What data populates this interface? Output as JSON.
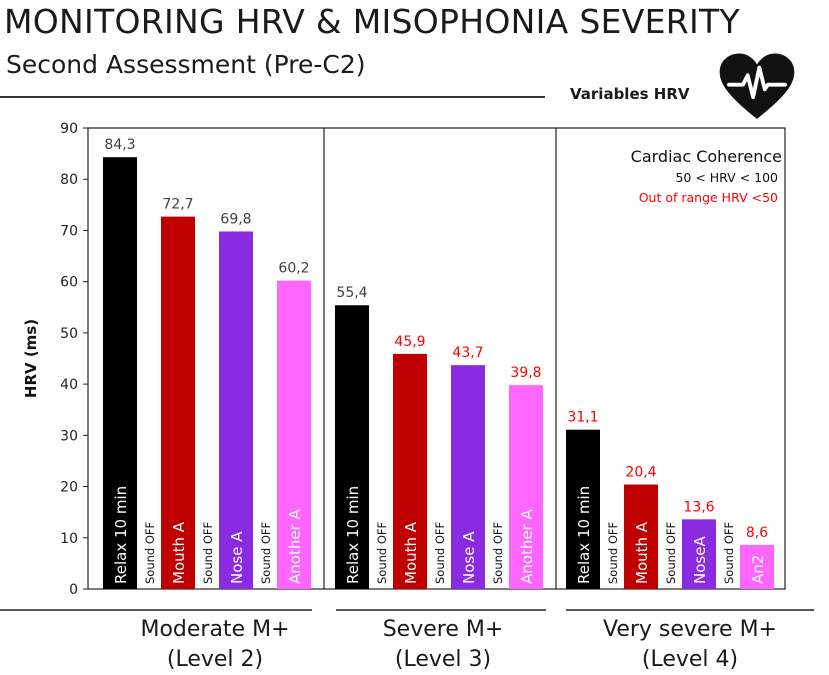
{
  "header": {
    "title": "MONITORING HRV & MISOPHONIA SEVERITY",
    "subtitle": "Second Assessment (Pre-C2)",
    "variables_label": "Variables HRV",
    "icon": "heart-pulse-icon"
  },
  "colors": {
    "relax": "#000000",
    "mouth": "#c00000",
    "nose": "#8a2be2",
    "another": "#ff66ff",
    "in_range_label": "#404040",
    "out_of_range_label": "#ff0000"
  },
  "legend": {
    "line1": "Cardiac Coherence",
    "line2": "50 < HRV < 100",
    "line3": "Out of range HRV <50"
  },
  "sound_off_label": "Sound OFF",
  "chart_data": {
    "type": "bar",
    "ylabel": "HRV (ms)",
    "ylim": [
      0,
      90
    ],
    "yticks": [
      "0",
      "10",
      "20",
      "30",
      "40",
      "50",
      "60",
      "70",
      "80",
      "90"
    ],
    "groups": [
      {
        "name": "Moderate M+",
        "level": "(Level 2)",
        "bars": [
          {
            "label": "Relax 10 min",
            "value": 84.3,
            "value_label": "84,3",
            "kind": "relax"
          },
          {
            "label": "Mouth A",
            "value": 72.7,
            "value_label": "72,7",
            "kind": "mouth"
          },
          {
            "label": "Nose  A",
            "value": 69.8,
            "value_label": "69,8",
            "kind": "nose"
          },
          {
            "label": "Another A",
            "value": 60.2,
            "value_label": "60,2",
            "kind": "another"
          }
        ]
      },
      {
        "name": "Severe M+",
        "level": "(Level 3)",
        "bars": [
          {
            "label": "Relax 10 min",
            "value": 55.4,
            "value_label": "55,4",
            "kind": "relax"
          },
          {
            "label": "Mouth A",
            "value": 45.9,
            "value_label": "45,9",
            "kind": "mouth"
          },
          {
            "label": "Nose  A",
            "value": 43.7,
            "value_label": "43,7",
            "kind": "nose"
          },
          {
            "label": "Another A",
            "value": 39.8,
            "value_label": "39,8",
            "kind": "another"
          }
        ]
      },
      {
        "name": "Very severe M+",
        "level": "(Level 4)",
        "bars": [
          {
            "label": "Relax 10 min",
            "value": 31.1,
            "value_label": "31,1",
            "kind": "relax"
          },
          {
            "label": "Mouth A",
            "value": 20.4,
            "value_label": "20,4",
            "kind": "mouth"
          },
          {
            "label": "NoseA",
            "value": 13.6,
            "value_label": "13,6",
            "kind": "nose"
          },
          {
            "label": "An2",
            "value": 8.6,
            "value_label": "8,6",
            "kind": "another"
          }
        ]
      }
    ]
  }
}
